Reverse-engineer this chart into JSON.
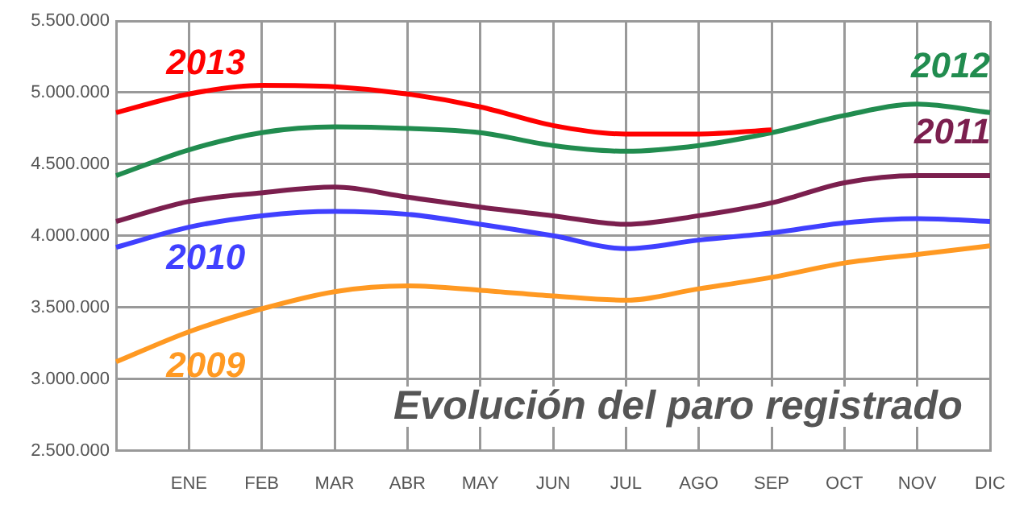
{
  "chart_data": {
    "type": "line",
    "title": "Evolución del paro registrado",
    "categories": [
      null,
      "ENE",
      "FEB",
      "MAR",
      "ABR",
      "MAY",
      "JUN",
      "JUL",
      "AGO",
      "SEP",
      "OCT",
      "NOV",
      "DIC"
    ],
    "series": [
      {
        "name": "2013",
        "color": "#ff0000",
        "values": [
          4860000,
          4990000,
          5050000,
          5040000,
          4990000,
          4900000,
          4770000,
          4710000,
          4710000,
          4740000,
          null,
          null,
          null
        ]
      },
      {
        "name": "2012",
        "color": "#218c4f",
        "values": [
          4420000,
          4600000,
          4720000,
          4760000,
          4750000,
          4720000,
          4630000,
          4590000,
          4630000,
          4720000,
          4840000,
          4920000,
          4860000
        ]
      },
      {
        "name": "2011",
        "color": "#7b1f4e",
        "values": [
          4100000,
          4240000,
          4300000,
          4340000,
          4270000,
          4200000,
          4140000,
          4080000,
          4140000,
          4230000,
          4370000,
          4420000,
          4420000
        ]
      },
      {
        "name": "2010",
        "color": "#4040ff",
        "values": [
          3920000,
          4060000,
          4140000,
          4170000,
          4150000,
          4080000,
          4000000,
          3910000,
          3970000,
          4020000,
          4090000,
          4120000,
          4100000
        ]
      },
      {
        "name": "2009",
        "color": "#ff9922",
        "values": [
          3120000,
          3330000,
          3490000,
          3610000,
          3650000,
          3620000,
          3580000,
          3550000,
          3630000,
          3710000,
          3810000,
          3870000,
          3930000
        ]
      }
    ],
    "ylim": [
      2500000,
      5500000
    ],
    "yticks": [
      {
        "value": 2500000,
        "label": "2.500.000"
      },
      {
        "value": 3000000,
        "label": "3.000.000"
      },
      {
        "value": 3500000,
        "label": "3.500.000"
      },
      {
        "value": 4000000,
        "label": "4.000.000"
      },
      {
        "value": 4500000,
        "label": "4.500.000"
      },
      {
        "value": 5000000,
        "label": "5.000.000"
      },
      {
        "value": 5500000,
        "label": "5.500.000"
      }
    ],
    "grid": true,
    "legend": false,
    "marker": "none",
    "line_style": "solid"
  }
}
